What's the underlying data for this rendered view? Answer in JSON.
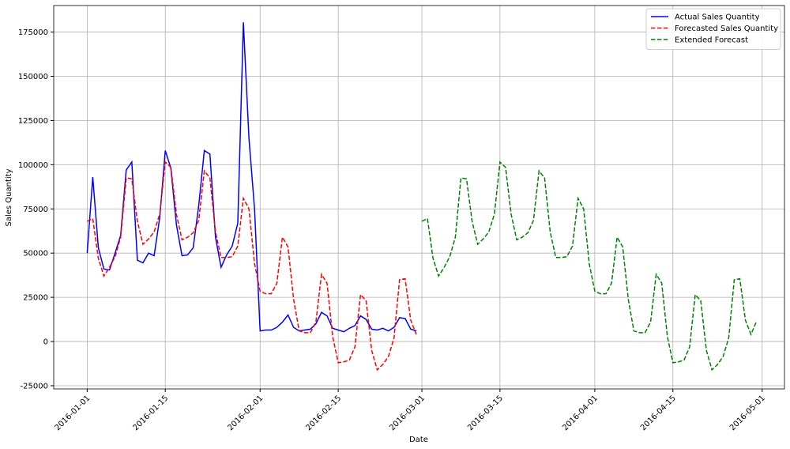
{
  "chart_data": {
    "type": "line",
    "xlabel": "Date",
    "ylabel": "Sales Quantity",
    "xlim": [
      "2015-12-26",
      "2016-05-05"
    ],
    "ylim": [
      -26800,
      190000
    ],
    "xticks": [
      "2016-01-01",
      "2016-01-15",
      "2016-02-01",
      "2016-02-15",
      "2016-03-01",
      "2016-03-15",
      "2016-04-01",
      "2016-04-15",
      "2016-05-01"
    ],
    "yticks": [
      -25000,
      0,
      25000,
      50000,
      75000,
      100000,
      125000,
      150000,
      175000
    ],
    "grid": true,
    "legend": "upper right",
    "series": [
      {
        "name": "Actual Sales Quantity",
        "color": "#0000ff",
        "dash": "solid",
        "x": [
          "2016-01-01",
          "2016-01-02",
          "2016-01-03",
          "2016-01-04",
          "2016-01-05",
          "2016-01-06",
          "2016-01-07",
          "2016-01-08",
          "2016-01-09",
          "2016-01-10",
          "2016-01-11",
          "2016-01-12",
          "2016-01-13",
          "2016-01-14",
          "2016-01-15",
          "2016-01-16",
          "2016-01-17",
          "2016-01-18",
          "2016-01-19",
          "2016-01-20",
          "2016-01-21",
          "2016-01-22",
          "2016-01-23",
          "2016-01-24",
          "2016-01-25",
          "2016-01-26",
          "2016-01-27",
          "2016-01-28",
          "2016-01-29",
          "2016-01-30",
          "2016-01-31",
          "2016-02-01",
          "2016-02-02",
          "2016-02-03",
          "2016-02-04",
          "2016-02-05",
          "2016-02-06",
          "2016-02-07",
          "2016-02-08",
          "2016-02-09",
          "2016-02-10",
          "2016-02-11",
          "2016-02-12",
          "2016-02-13",
          "2016-02-14",
          "2016-02-15",
          "2016-02-16",
          "2016-02-17",
          "2016-02-18",
          "2016-02-19",
          "2016-02-20",
          "2016-02-21",
          "2016-02-22",
          "2016-02-23",
          "2016-02-24",
          "2016-02-25",
          "2016-02-26",
          "2016-02-27",
          "2016-02-28",
          "2016-02-29"
        ],
        "values": [
          50000,
          93000,
          53000,
          41000,
          40500,
          50000,
          60000,
          97000,
          101500,
          46000,
          44500,
          50000,
          48500,
          70000,
          108000,
          98000,
          66000,
          48500,
          49000,
          53000,
          77000,
          108000,
          106000,
          59000,
          42000,
          49000,
          54000,
          67000,
          180500,
          115000,
          75000,
          6000,
          6500,
          6500,
          8000,
          11000,
          15000,
          8000,
          6000,
          6500,
          7000,
          10000,
          16500,
          14500,
          7500,
          6500,
          5500,
          7500,
          9000,
          14500,
          12500,
          7000,
          6500,
          7500,
          6000,
          8000,
          13500,
          13000,
          7000,
          6000
        ]
      },
      {
        "name": "Forecasted Sales Quantity",
        "color": "#ff0000",
        "dash": "dashed",
        "x": [
          "2016-01-01",
          "2016-01-02",
          "2016-01-03",
          "2016-01-04",
          "2016-01-05",
          "2016-01-06",
          "2016-01-07",
          "2016-01-08",
          "2016-01-09",
          "2016-01-10",
          "2016-01-11",
          "2016-01-12",
          "2016-01-13",
          "2016-01-14",
          "2016-01-15",
          "2016-01-16",
          "2016-01-17",
          "2016-01-18",
          "2016-01-19",
          "2016-01-20",
          "2016-01-21",
          "2016-01-22",
          "2016-01-23",
          "2016-01-24",
          "2016-01-25",
          "2016-01-26",
          "2016-01-27",
          "2016-01-28",
          "2016-01-29",
          "2016-01-30",
          "2016-01-31",
          "2016-02-01",
          "2016-02-02",
          "2016-02-03",
          "2016-02-04",
          "2016-02-05",
          "2016-02-06",
          "2016-02-07",
          "2016-02-08",
          "2016-02-09",
          "2016-02-10",
          "2016-02-11",
          "2016-02-12",
          "2016-02-13",
          "2016-02-14",
          "2016-02-15",
          "2016-02-16",
          "2016-02-17",
          "2016-02-18",
          "2016-02-19",
          "2016-02-20",
          "2016-02-21",
          "2016-02-22",
          "2016-02-23",
          "2016-02-24",
          "2016-02-25",
          "2016-02-26",
          "2016-02-27",
          "2016-02-28",
          "2016-02-29"
        ],
        "values": [
          68000,
          69500,
          47000,
          37000,
          42000,
          48000,
          59000,
          92500,
          92000,
          68000,
          55000,
          58000,
          62000,
          72000,
          101500,
          98500,
          72000,
          57500,
          59000,
          61500,
          68500,
          96500,
          92500,
          62000,
          47500,
          47500,
          48000,
          54000,
          81000,
          75000,
          44000,
          28500,
          27000,
          27000,
          33000,
          59000,
          53500,
          24000,
          6000,
          5000,
          5000,
          11000,
          38000,
          33000,
          3000,
          -12000,
          -11500,
          -10500,
          -3000,
          26500,
          23000,
          -5000,
          -16000,
          -13000,
          -8500,
          2000,
          35000,
          35500,
          12000,
          4000
        ]
      },
      {
        "name": "Extended Forecast",
        "color": "#008000",
        "dash": "dashed",
        "x": [
          "2016-03-01",
          "2016-03-02",
          "2016-03-03",
          "2016-03-04",
          "2016-03-05",
          "2016-03-06",
          "2016-03-07",
          "2016-03-08",
          "2016-03-09",
          "2016-03-10",
          "2016-03-11",
          "2016-03-12",
          "2016-03-13",
          "2016-03-14",
          "2016-03-15",
          "2016-03-16",
          "2016-03-17",
          "2016-03-18",
          "2016-03-19",
          "2016-03-20",
          "2016-03-21",
          "2016-03-22",
          "2016-03-23",
          "2016-03-24",
          "2016-03-25",
          "2016-03-26",
          "2016-03-27",
          "2016-03-28",
          "2016-03-29",
          "2016-03-30",
          "2016-03-31",
          "2016-04-01",
          "2016-04-02",
          "2016-04-03",
          "2016-04-04",
          "2016-04-05",
          "2016-04-06",
          "2016-04-07",
          "2016-04-08",
          "2016-04-09",
          "2016-04-10",
          "2016-04-11",
          "2016-04-12",
          "2016-04-13",
          "2016-04-14",
          "2016-04-15",
          "2016-04-16",
          "2016-04-17",
          "2016-04-18",
          "2016-04-19",
          "2016-04-20",
          "2016-04-21",
          "2016-04-22",
          "2016-04-23",
          "2016-04-24",
          "2016-04-25",
          "2016-04-26",
          "2016-04-27",
          "2016-04-28",
          "2016-04-29",
          "2016-04-30"
        ],
        "values": [
          68000,
          69500,
          47000,
          37000,
          42000,
          48000,
          59000,
          92500,
          92000,
          68000,
          55000,
          58000,
          62000,
          72000,
          101500,
          98500,
          72000,
          57500,
          59000,
          61500,
          68500,
          96500,
          92500,
          62000,
          47500,
          47500,
          48000,
          54000,
          81000,
          75000,
          44000,
          28500,
          27000,
          27000,
          33000,
          59000,
          53500,
          24000,
          6000,
          5000,
          5000,
          11000,
          38000,
          33000,
          3000,
          -12000,
          -11500,
          -10500,
          -3000,
          26500,
          23000,
          -5000,
          -16000,
          -13000,
          -8500,
          2000,
          35000,
          35500,
          12000,
          4000,
          11500
        ]
      }
    ]
  }
}
